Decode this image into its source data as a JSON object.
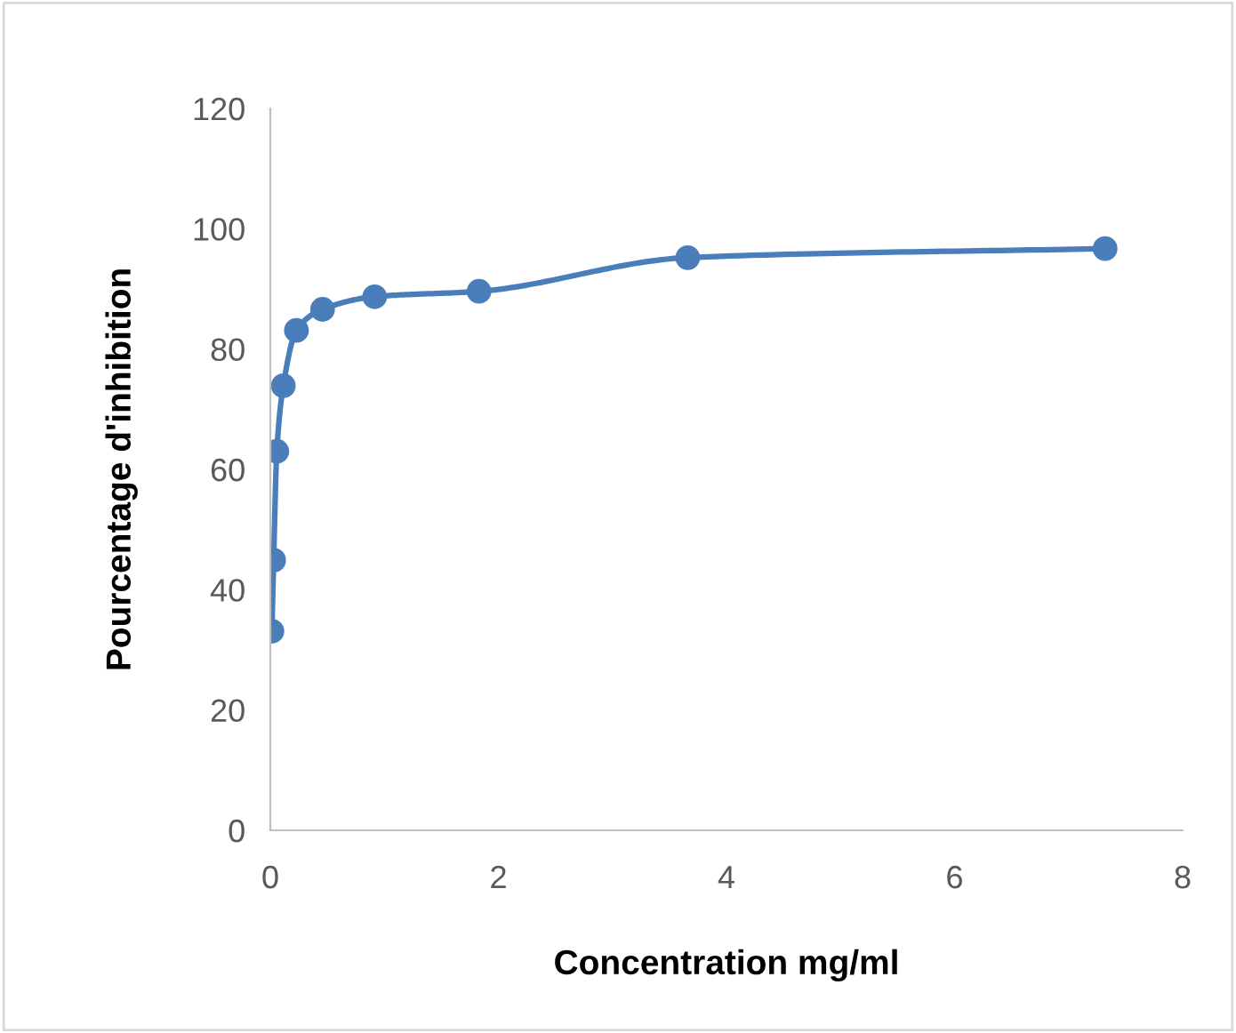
{
  "chart_data": {
    "type": "line",
    "xlabel": "Concentration mg/ml",
    "ylabel": "Pourcentage d'inhibition",
    "series": [
      {
        "color": "#4a7ebb",
        "x": [
          0.014,
          0.029,
          0.057,
          0.114,
          0.229,
          0.458,
          0.915,
          1.83,
          3.66,
          7.32
        ],
        "values": [
          33.1,
          44.9,
          63,
          73.9,
          83.1,
          86.6,
          88.7,
          89.6,
          95.2,
          96.7
        ]
      }
    ],
    "xlim": [
      0,
      8
    ],
    "xticks": [
      0,
      2,
      4,
      6,
      8
    ],
    "ylim": [
      0,
      120
    ],
    "yticks": [
      0,
      20,
      40,
      60,
      80,
      100,
      120
    ],
    "grid": false,
    "legend": false,
    "marker": "circle",
    "line_style": "solid"
  }
}
